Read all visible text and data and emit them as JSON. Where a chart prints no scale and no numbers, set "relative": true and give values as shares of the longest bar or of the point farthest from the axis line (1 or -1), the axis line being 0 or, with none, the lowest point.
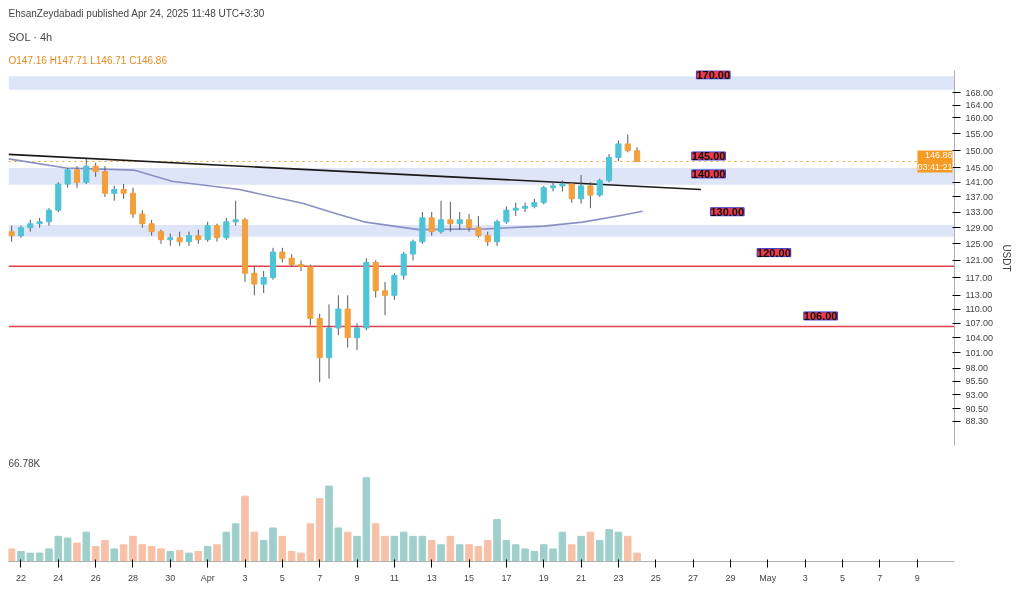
{
  "chart_data": [
    {
      "type": "candlestick",
      "title": "SOL · 4h",
      "subtitle": "O147.16 H147.71 L146.71 C146.86",
      "ylabel": "USDT",
      "log": "y",
      "tick_labels": "y",
      "annotations": [
        "EhsanZeydabadi published Apr 24, 2025 11:48 UTC+3:30",
        {
          "text": "170.00",
          "x": "2025-04-26T18:00",
          "y": 170
        },
        {
          "text": "145.00",
          "x": "2025-04-26T12:00",
          "y": 145
        },
        {
          "text": "140.00",
          "x": "2025-04-26T12:00",
          "y": 140
        },
        {
          "text": "130.00",
          "x": "2025-04-27T12:00",
          "y": 130
        },
        {
          "text": "120.00",
          "x": "2025-04-30T00:00",
          "y": 120
        },
        {
          "text": "106.00",
          "x": "2025-05-02T12:00",
          "y": 106
        }
      ],
      "xlim": [
        "2025-03-21T08:00",
        "2025-05-11T00:00"
      ],
      "ylim": [
        84.2,
        175.5
      ],
      "yticks": [
        {
          "value": 88.3,
          "label": "88.30"
        },
        {
          "value": 90.5,
          "label": "90.50"
        },
        {
          "value": 93,
          "label": "93.00"
        },
        {
          "value": 95.5,
          "label": "95.50"
        },
        {
          "value": 98,
          "label": "98.00"
        },
        {
          "value": 101,
          "label": "101.00"
        },
        {
          "value": 104,
          "label": "104.00"
        },
        {
          "value": 107,
          "label": "107.00"
        },
        {
          "value": 110,
          "label": "110.00"
        },
        {
          "value": 113,
          "label": "113.00"
        },
        {
          "value": 117,
          "label": "117.00"
        },
        {
          "value": 121,
          "label": "121.00"
        },
        {
          "value": 125,
          "label": "125.00"
        },
        {
          "value": 129,
          "label": "129.00"
        },
        {
          "value": 133,
          "label": "133.00"
        },
        {
          "value": 137,
          "label": "137.00"
        },
        {
          "value": 141,
          "label": "141.00"
        },
        {
          "value": 145,
          "label": "145.00"
        },
        {
          "value": 150,
          "label": "150.00"
        },
        {
          "value": 155,
          "label": "155.00"
        },
        {
          "value": 160,
          "label": "160.00"
        },
        {
          "value": 164,
          "label": "164.00"
        },
        {
          "value": 168,
          "label": "168.00"
        }
      ],
      "bands": [
        {
          "axis": "y",
          "from": 169,
          "to": 173.5,
          "color": "#d6def8"
        },
        {
          "axis": "y",
          "from": 140.3,
          "to": 145,
          "color": "#d6def8"
        },
        {
          "axis": "y",
          "from": 126.7,
          "to": 129.7,
          "color": "#d6def8"
        }
      ],
      "ref_lines": [
        {
          "axis": "y",
          "value": 119.6,
          "color": "#e0404a"
        },
        {
          "axis": "y",
          "value": 106.3,
          "color": "#e0404a"
        },
        {
          "axis": "y",
          "value": 146.86,
          "label": "146.86\n03:41:21",
          "color": "#f59a23",
          "line_style": "dotted"
        }
      ],
      "x": [
        "2025-03-21T12:00",
        "2025-03-22T00:00",
        "2025-03-22T12:00",
        "2025-03-23T00:00",
        "2025-03-23T12:00",
        "2025-03-24T00:00",
        "2025-03-24T12:00",
        "2025-03-25T00:00",
        "2025-03-25T12:00",
        "2025-03-26T00:00",
        "2025-03-26T12:00",
        "2025-03-27T00:00",
        "2025-03-27T12:00",
        "2025-03-28T00:00",
        "2025-03-28T12:00",
        "2025-03-29T00:00",
        "2025-03-29T12:00",
        "2025-03-30T00:00",
        "2025-03-30T12:00",
        "2025-03-31T00:00",
        "2025-03-31T12:00",
        "2025-04-01T00:00",
        "2025-04-01T12:00",
        "2025-04-02T00:00",
        "2025-04-02T12:00",
        "2025-04-03T00:00",
        "2025-04-03T12:00",
        "2025-04-04T00:00",
        "2025-04-04T12:00",
        "2025-04-05T00:00",
        "2025-04-05T12:00",
        "2025-04-06T00:00",
        "2025-04-06T12:00",
        "2025-04-07T00:00",
        "2025-04-07T12:00",
        "2025-04-08T00:00",
        "2025-04-08T12:00",
        "2025-04-09T00:00",
        "2025-04-09T12:00",
        "2025-04-10T00:00",
        "2025-04-10T12:00",
        "2025-04-11T00:00",
        "2025-04-11T12:00",
        "2025-04-12T00:00",
        "2025-04-12T12:00",
        "2025-04-13T00:00",
        "2025-04-13T12:00",
        "2025-04-14T00:00",
        "2025-04-14T12:00",
        "2025-04-15T00:00",
        "2025-04-15T12:00",
        "2025-04-16T00:00",
        "2025-04-16T12:00",
        "2025-04-17T00:00",
        "2025-04-17T12:00",
        "2025-04-18T00:00",
        "2025-04-18T12:00",
        "2025-04-19T00:00",
        "2025-04-19T12:00",
        "2025-04-20T00:00",
        "2025-04-20T12:00",
        "2025-04-21T00:00",
        "2025-04-21T12:00",
        "2025-04-22T00:00",
        "2025-04-22T12:00",
        "2025-04-23T00:00",
        "2025-04-23T12:00",
        "2025-04-24T00:00"
      ],
      "ohlc": [
        [
          128,
          129.5,
          125.5,
          127
        ],
        [
          127,
          129.5,
          126.5,
          129
        ],
        [
          129,
          131,
          128,
          130
        ],
        [
          130,
          131.5,
          129,
          130.5
        ],
        [
          130.5,
          134,
          129.5,
          133.5
        ],
        [
          133.5,
          141,
          133,
          140.5
        ],
        [
          140.5,
          145,
          139.5,
          144.5
        ],
        [
          144.5,
          145.5,
          139.5,
          141
        ],
        [
          141,
          147.6,
          140.5,
          145.5
        ],
        [
          145.5,
          146.5,
          142.5,
          144
        ],
        [
          144,
          145.5,
          137,
          138
        ],
        [
          138,
          140,
          136,
          139
        ],
        [
          139,
          140.5,
          136.5,
          138
        ],
        [
          138,
          139.5,
          131.5,
          132.5
        ],
        [
          132.5,
          133.5,
          129,
          130
        ],
        [
          130,
          131,
          127,
          128
        ],
        [
          128,
          128.5,
          125,
          126
        ],
        [
          126,
          127.5,
          124.5,
          126.5
        ],
        [
          126.5,
          128,
          124.5,
          125.5
        ],
        [
          125.5,
          128,
          124.5,
          127
        ],
        [
          127,
          128.5,
          125,
          126
        ],
        [
          126,
          130.5,
          125.5,
          129.5
        ],
        [
          129.5,
          130,
          125.5,
          126.5
        ],
        [
          126.5,
          131.5,
          126,
          130.5
        ],
        [
          130.5,
          136,
          129.5,
          131
        ],
        [
          131,
          131.5,
          116,
          118
        ],
        [
          118,
          119.5,
          113,
          115.5
        ],
        [
          115.5,
          118.5,
          113.5,
          117
        ],
        [
          117,
          124,
          116.5,
          123
        ],
        [
          123,
          124,
          120.5,
          121.5
        ],
        [
          121.5,
          122.5,
          119.5,
          120
        ],
        [
          120,
          121,
          118.5,
          119.5
        ],
        [
          119.5,
          120,
          106.5,
          108
        ],
        [
          108,
          109,
          95.3,
          100
        ],
        [
          100,
          111,
          96,
          106
        ],
        [
          106,
          113,
          104.5,
          110
        ],
        [
          110,
          113,
          102,
          104
        ],
        [
          104,
          107,
          101.5,
          106
        ],
        [
          106,
          121.5,
          105.5,
          120.5
        ],
        [
          120.5,
          121,
          112.5,
          114
        ],
        [
          114,
          116,
          108.7,
          113
        ],
        [
          113,
          118,
          112,
          117.5
        ],
        [
          117.5,
          123,
          116.5,
          122.5
        ],
        [
          122.5,
          126,
          121,
          125.5
        ],
        [
          125.5,
          133,
          125,
          131.5
        ],
        [
          131.5,
          133,
          127,
          128
        ],
        [
          128,
          136,
          127.5,
          131
        ],
        [
          131,
          135.7,
          128,
          130
        ],
        [
          130,
          133,
          128.5,
          131
        ],
        [
          131,
          132.5,
          128,
          129
        ],
        [
          129,
          132,
          126.5,
          127
        ],
        [
          127,
          128,
          124.5,
          125.5
        ],
        [
          125.5,
          131,
          124.5,
          130.5
        ],
        [
          130.5,
          134.5,
          130,
          133.5
        ],
        [
          133.5,
          135.5,
          132,
          134
        ],
        [
          134,
          135.5,
          133,
          134.5
        ],
        [
          134.5,
          136.5,
          134,
          135.5
        ],
        [
          135.5,
          140,
          135,
          139.5
        ],
        [
          139.5,
          141,
          138.5,
          140
        ],
        [
          140,
          141.5,
          138.5,
          140.5
        ],
        [
          140.5,
          141,
          135.5,
          136.5
        ],
        [
          136.5,
          143,
          135.2,
          140
        ],
        [
          140,
          141,
          134,
          137.5
        ],
        [
          137.5,
          142,
          137,
          141.5
        ],
        [
          141.5,
          149,
          141,
          148
        ],
        [
          148,
          153,
          147,
          152
        ],
        [
          152,
          154.8,
          149.5,
          150
        ],
        [
          150,
          151,
          146.71,
          146.86
        ]
      ],
      "colors": [
        "#f2a03d",
        "#4fc3d6",
        "#4fc3d6",
        "#4fc3d6",
        "#4fc3d6",
        "#4fc3d6",
        "#4fc3d6",
        "#f2a03d",
        "#4fc3d6",
        "#f2a03d",
        "#f2a03d",
        "#4fc3d6",
        "#f2a03d",
        "#f2a03d",
        "#f2a03d",
        "#f2a03d",
        "#f2a03d",
        "#4fc3d6",
        "#f2a03d",
        "#4fc3d6",
        "#f2a03d",
        "#4fc3d6",
        "#f2a03d",
        "#4fc3d6",
        "#4fc3d6",
        "#f2a03d",
        "#f2a03d",
        "#4fc3d6",
        "#4fc3d6",
        "#f2a03d",
        "#f2a03d",
        "#f2a03d",
        "#f2a03d",
        "#f2a03d",
        "#4fc3d6",
        "#4fc3d6",
        "#f2a03d",
        "#4fc3d6",
        "#4fc3d6",
        "#f2a03d",
        "#f2a03d",
        "#4fc3d6",
        "#4fc3d6",
        "#4fc3d6",
        "#4fc3d6",
        "#f2a03d",
        "#4fc3d6",
        "#f2a03d",
        "#4fc3d6",
        "#f2a03d",
        "#f2a03d",
        "#f2a03d",
        "#4fc3d6",
        "#4fc3d6",
        "#4fc3d6",
        "#4fc3d6",
        "#4fc3d6",
        "#4fc3d6",
        "#4fc3d6",
        "#4fc3d6",
        "#f2a03d",
        "#4fc3d6",
        "#f2a03d",
        "#4fc3d6",
        "#4fc3d6",
        "#4fc3d6",
        "#f2a03d",
        "#f2a03d"
      ],
      "series": [
        {
          "type": "line",
          "color": "#1a1a1a",
          "x": [
            "2025-03-21T08:00",
            "2025-04-27T10:00"
          ],
          "values": [
            148.9,
            139.0
          ]
        },
        {
          "type": "line",
          "color": "#8a8fc4",
          "x": [
            "2025-03-21T08:00",
            "2025-03-24T10:00",
            "2025-03-28T01:00",
            "2025-03-30T02:00",
            "2025-04-02T17:00",
            "2025-04-06T02:00",
            "2025-04-07T14:00",
            "2025-04-09T11:00",
            "2025-04-12T07:00",
            "2025-04-15T22:00",
            "2025-04-19T00:00",
            "2025-04-21T02:00",
            "2025-04-23T03:00",
            "2025-04-24T07:00"
          ],
          "values": [
            147.6,
            145.0,
            144.4,
            141.3,
            139.0,
            135.3,
            133.0,
            130.4,
            128.5,
            128.7,
            129.4,
            130.4,
            132.1,
            133.2
          ]
        }
      ]
    },
    {
      "type": "bar",
      "relative": true,
      "tick_labels": "x",
      "annotations": [
        "66.78K"
      ],
      "xlim": [
        "2025-03-21T08:00",
        "2025-05-11T00:00"
      ],
      "xticks": [
        {
          "value": "2025-03-22",
          "label": "22"
        },
        {
          "value": "2025-03-24",
          "label": "24"
        },
        {
          "value": "2025-03-26",
          "label": "26"
        },
        {
          "value": "2025-03-28",
          "label": "28"
        },
        {
          "value": "2025-03-30",
          "label": "30"
        },
        {
          "value": "2025-04-01",
          "label": "Apr"
        },
        {
          "value": "2025-04-03",
          "label": "3"
        },
        {
          "value": "2025-04-05",
          "label": "5"
        },
        {
          "value": "2025-04-07",
          "label": "7"
        },
        {
          "value": "2025-04-09",
          "label": "9"
        },
        {
          "value": "2025-04-11",
          "label": "11"
        },
        {
          "value": "2025-04-13",
          "label": "13"
        },
        {
          "value": "2025-04-15",
          "label": "15"
        },
        {
          "value": "2025-04-17",
          "label": "17"
        },
        {
          "value": "2025-04-19",
          "label": "19"
        },
        {
          "value": "2025-04-21",
          "label": "21"
        },
        {
          "value": "2025-04-23",
          "label": "23"
        },
        {
          "value": "2025-04-25",
          "label": "25"
        },
        {
          "value": "2025-04-27",
          "label": "27"
        },
        {
          "value": "2025-04-29",
          "label": "29"
        },
        {
          "value": "2025-05-01",
          "label": "May"
        },
        {
          "value": "2025-05-03",
          "label": "3"
        },
        {
          "value": "2025-05-05",
          "label": "5"
        },
        {
          "value": "2025-05-07",
          "label": "7"
        },
        {
          "value": "2025-05-09",
          "label": "9"
        }
      ],
      "x": [
        "2025-03-21T12:00",
        "2025-03-22T00:00",
        "2025-03-22T12:00",
        "2025-03-23T00:00",
        "2025-03-23T12:00",
        "2025-03-24T00:00",
        "2025-03-24T12:00",
        "2025-03-25T00:00",
        "2025-03-25T12:00",
        "2025-03-26T00:00",
        "2025-03-26T12:00",
        "2025-03-27T00:00",
        "2025-03-27T12:00",
        "2025-03-28T00:00",
        "2025-03-28T12:00",
        "2025-03-29T00:00",
        "2025-03-29T12:00",
        "2025-03-30T00:00",
        "2025-03-30T12:00",
        "2025-03-31T00:00",
        "2025-03-31T12:00",
        "2025-04-01T00:00",
        "2025-04-01T12:00",
        "2025-04-02T00:00",
        "2025-04-02T12:00",
        "2025-04-03T00:00",
        "2025-04-03T12:00",
        "2025-04-04T00:00",
        "2025-04-04T12:00",
        "2025-04-05T00:00",
        "2025-04-05T12:00",
        "2025-04-06T00:00",
        "2025-04-06T12:00",
        "2025-04-07T00:00",
        "2025-04-07T12:00",
        "2025-04-08T00:00",
        "2025-04-08T12:00",
        "2025-04-09T00:00",
        "2025-04-09T12:00",
        "2025-04-10T00:00",
        "2025-04-10T12:00",
        "2025-04-11T00:00",
        "2025-04-11T12:00",
        "2025-04-12T00:00",
        "2025-04-12T12:00",
        "2025-04-13T00:00",
        "2025-04-13T12:00",
        "2025-04-14T00:00",
        "2025-04-14T12:00",
        "2025-04-15T00:00",
        "2025-04-15T12:00",
        "2025-04-16T00:00",
        "2025-04-16T12:00",
        "2025-04-17T00:00",
        "2025-04-17T12:00",
        "2025-04-18T00:00",
        "2025-04-18T12:00",
        "2025-04-19T00:00",
        "2025-04-19T12:00",
        "2025-04-20T00:00",
        "2025-04-20T12:00",
        "2025-04-21T00:00",
        "2025-04-21T12:00",
        "2025-04-22T00:00",
        "2025-04-22T12:00",
        "2025-04-23T00:00",
        "2025-04-23T12:00",
        "2025-04-24T00:00"
      ],
      "values": [
        0.15,
        0.12,
        0.1,
        0.1,
        0.15,
        0.3,
        0.28,
        0.22,
        0.35,
        0.18,
        0.25,
        0.15,
        0.2,
        0.3,
        0.2,
        0.18,
        0.15,
        0.12,
        0.13,
        0.1,
        0.12,
        0.18,
        0.2,
        0.35,
        0.45,
        0.78,
        0.35,
        0.25,
        0.4,
        0.3,
        0.12,
        0.1,
        0.45,
        0.75,
        0.9,
        0.4,
        0.35,
        0.3,
        1.0,
        0.45,
        0.3,
        0.3,
        0.35,
        0.3,
        0.3,
        0.25,
        0.2,
        0.3,
        0.2,
        0.2,
        0.18,
        0.25,
        0.5,
        0.25,
        0.2,
        0.15,
        0.12,
        0.2,
        0.15,
        0.35,
        0.2,
        0.3,
        0.35,
        0.25,
        0.38,
        0.35,
        0.3,
        0.1
      ],
      "colors": [
        "#f7c1a8",
        "#9fcfca",
        "#9fcfca",
        "#9fcfca",
        "#9fcfca",
        "#9fcfca",
        "#9fcfca",
        "#f7c1a8",
        "#9fcfca",
        "#f7c1a8",
        "#f7c1a8",
        "#9fcfca",
        "#f7c1a8",
        "#f7c1a8",
        "#f7c1a8",
        "#f7c1a8",
        "#f7c1a8",
        "#9fcfca",
        "#f7c1a8",
        "#9fcfca",
        "#f7c1a8",
        "#9fcfca",
        "#f7c1a8",
        "#9fcfca",
        "#9fcfca",
        "#f7c1a8",
        "#f7c1a8",
        "#9fcfca",
        "#9fcfca",
        "#f7c1a8",
        "#f7c1a8",
        "#f7c1a8",
        "#f7c1a8",
        "#f7c1a8",
        "#9fcfca",
        "#9fcfca",
        "#f7c1a8",
        "#9fcfca",
        "#9fcfca",
        "#f7c1a8",
        "#f7c1a8",
        "#9fcfca",
        "#9fcfca",
        "#9fcfca",
        "#9fcfca",
        "#f7c1a8",
        "#9fcfca",
        "#f7c1a8",
        "#9fcfca",
        "#f7c1a8",
        "#f7c1a8",
        "#f7c1a8",
        "#9fcfca",
        "#9fcfca",
        "#9fcfca",
        "#9fcfca",
        "#9fcfca",
        "#9fcfca",
        "#9fcfca",
        "#9fcfca",
        "#f7c1a8",
        "#9fcfca",
        "#f7c1a8",
        "#9fcfca",
        "#9fcfca",
        "#9fcfca",
        "#f7c1a8",
        "#f7c1a8"
      ]
    }
  ]
}
